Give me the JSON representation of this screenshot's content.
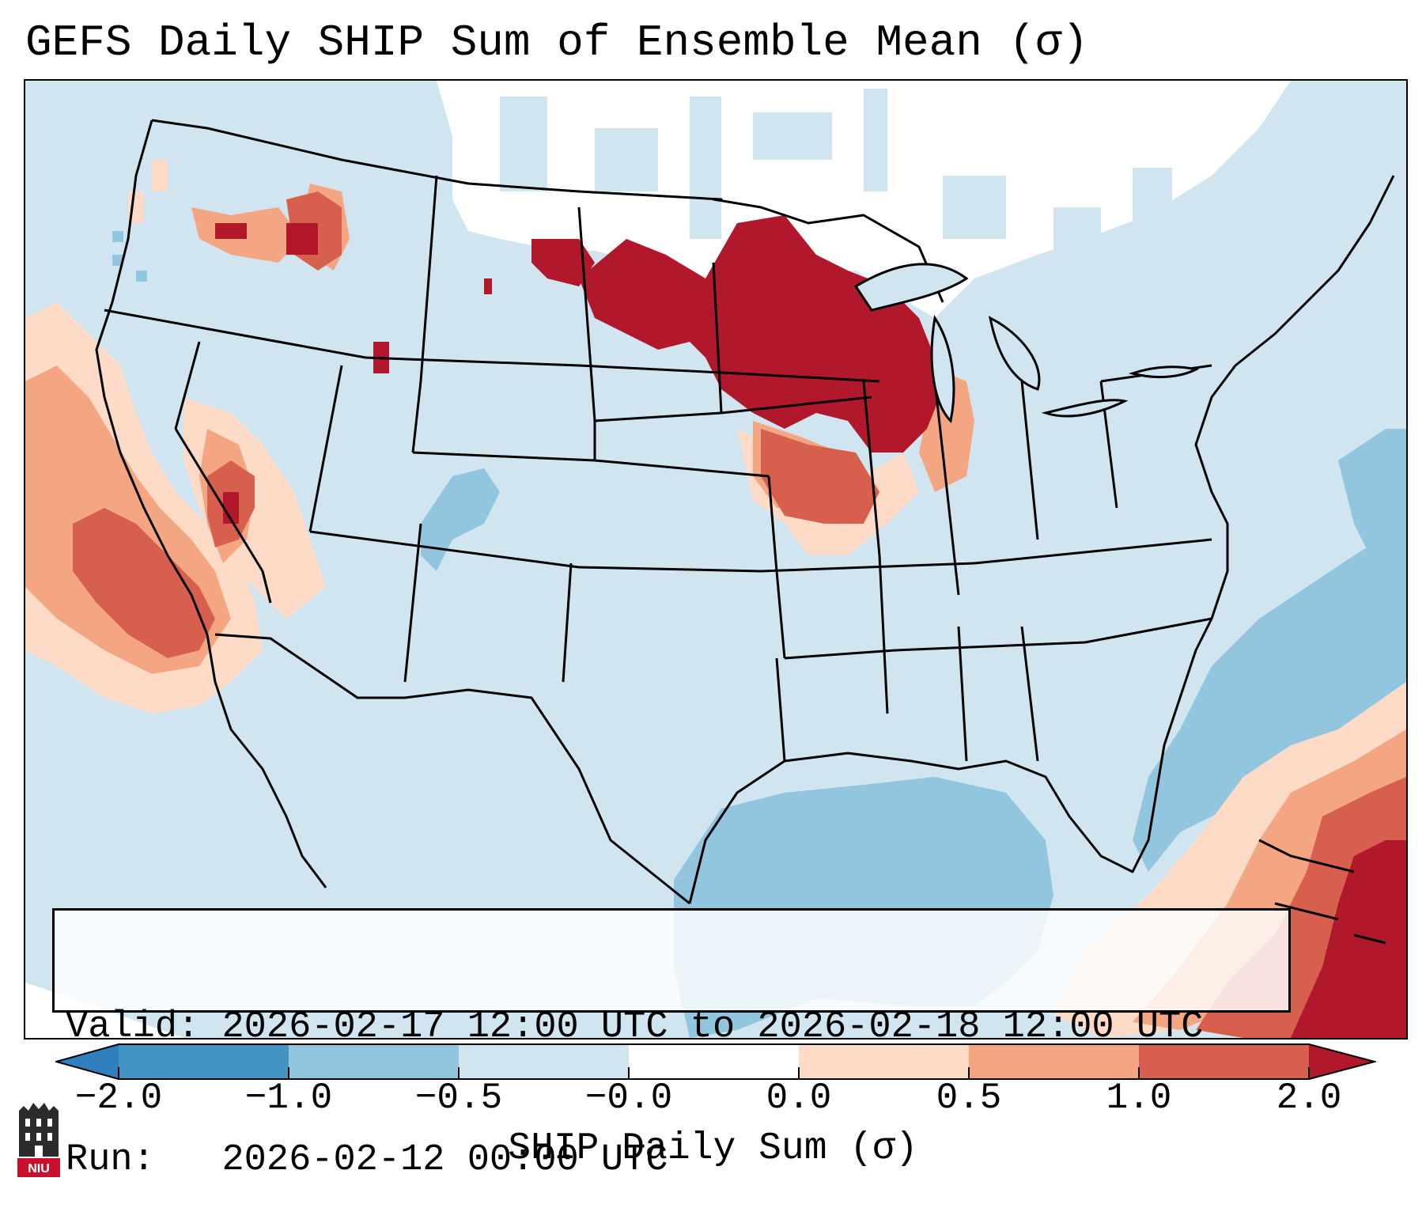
{
  "title": "GEFS Daily SHIP Sum of Ensemble Mean (σ)",
  "info": {
    "valid_label": "Valid:",
    "valid_value": "2026-02-17 12:00 UTC to 2026-02-18 12:00 UTC",
    "run_label": "Run:",
    "run_value": "2026-02-12 00:00 UTC"
  },
  "colorbar": {
    "label": "SHIP Daily Sum (σ)",
    "ticks": [
      "−2.0",
      "−1.0",
      "−0.5",
      "−0.0",
      "0.0",
      "0.5",
      "1.0",
      "2.0"
    ],
    "colors": {
      "below_min": "#2f7fbf",
      "bin_m2_m1": "#4393c3",
      "bin_m1_m05": "#92c5de",
      "bin_m05_m0": "#d1e5f0",
      "bin_m0_0": "#ffffff",
      "bin_0_05": "#fddbc7",
      "bin_05_1": "#f4a582",
      "bin_1_2": "#d6604d",
      "above_max": "#b2182b"
    }
  },
  "map": {
    "projection": "Lambert conformal, CONUS",
    "background_field": "#d1e5f0",
    "borders": "#000000"
  },
  "logo": {
    "text": "NIU"
  }
}
